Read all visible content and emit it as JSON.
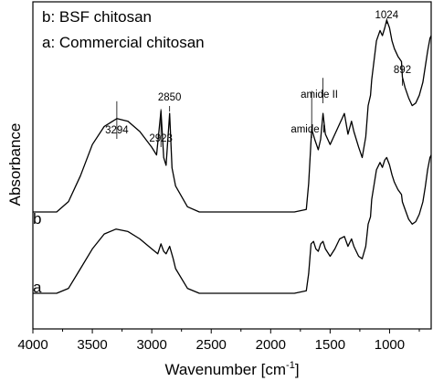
{
  "chart_data": {
    "type": "line",
    "xlabel": "Wavenumber",
    "xlabel_unit": "[cm",
    "xlabel_unit_exp": "-1",
    "xlabel_unit_close": "]",
    "ylabel": "Absorbance",
    "xlim": [
      4000,
      650
    ],
    "x_reversed": true,
    "x_ticks": [
      4000,
      3500,
      3000,
      2500,
      2000,
      1500,
      1000
    ],
    "y_ticks": [],
    "grid": false,
    "legend": {
      "placement": "top-left",
      "entries": [
        "b: BSF chitosan",
        "a: Commercial chitosan"
      ]
    },
    "annotations": [
      {
        "label": "3294",
        "x": 3294,
        "series": "b",
        "tip_y": 0.54
      },
      {
        "label": "2923",
        "x": 2923,
        "series": "b",
        "tip_y": 0.51
      },
      {
        "label": "2850",
        "x": 2850,
        "series": "b",
        "tip_y": 0.5
      },
      {
        "label": "amide I",
        "x": 1655,
        "series": "b",
        "tip_y": 0.58
      },
      {
        "label": "amide II",
        "x": 1560,
        "series": "b",
        "tip_y": 0.63
      },
      {
        "label": "1024",
        "x": 1024,
        "series": "b",
        "tip_y": 0.86
      },
      {
        "label": "892",
        "x": 892,
        "series": "b",
        "tip_y": 0.6
      }
    ],
    "series": [
      {
        "name": "b",
        "points": [
          [
            4000,
            0.12
          ],
          [
            3800,
            0.12
          ],
          [
            3700,
            0.16
          ],
          [
            3600,
            0.26
          ],
          [
            3500,
            0.38
          ],
          [
            3400,
            0.45
          ],
          [
            3294,
            0.48
          ],
          [
            3200,
            0.47
          ],
          [
            3100,
            0.43
          ],
          [
            3000,
            0.37
          ],
          [
            2960,
            0.34
          ],
          [
            2923,
            0.51
          ],
          [
            2900,
            0.33
          ],
          [
            2880,
            0.3
          ],
          [
            2850,
            0.5
          ],
          [
            2830,
            0.29
          ],
          [
            2800,
            0.22
          ],
          [
            2700,
            0.14
          ],
          [
            2600,
            0.12
          ],
          [
            2400,
            0.12
          ],
          [
            2200,
            0.12
          ],
          [
            2000,
            0.12
          ],
          [
            1800,
            0.12
          ],
          [
            1700,
            0.13
          ],
          [
            1680,
            0.23
          ],
          [
            1655,
            0.44
          ],
          [
            1630,
            0.4
          ],
          [
            1600,
            0.36
          ],
          [
            1580,
            0.4
          ],
          [
            1560,
            0.5
          ],
          [
            1540,
            0.42
          ],
          [
            1500,
            0.38
          ],
          [
            1460,
            0.42
          ],
          [
            1420,
            0.46
          ],
          [
            1380,
            0.5
          ],
          [
            1350,
            0.42
          ],
          [
            1320,
            0.47
          ],
          [
            1300,
            0.43
          ],
          [
            1260,
            0.37
          ],
          [
            1230,
            0.33
          ],
          [
            1200,
            0.41
          ],
          [
            1180,
            0.53
          ],
          [
            1160,
            0.57
          ],
          [
            1150,
            0.63
          ],
          [
            1110,
            0.78
          ],
          [
            1080,
            0.82
          ],
          [
            1060,
            0.8
          ],
          [
            1040,
            0.83
          ],
          [
            1024,
            0.86
          ],
          [
            1000,
            0.83
          ],
          [
            980,
            0.78
          ],
          [
            960,
            0.75
          ],
          [
            930,
            0.72
          ],
          [
            900,
            0.7
          ],
          [
            892,
            0.64
          ],
          [
            870,
            0.6
          ],
          [
            840,
            0.56
          ],
          [
            810,
            0.53
          ],
          [
            780,
            0.54
          ],
          [
            750,
            0.57
          ],
          [
            720,
            0.62
          ],
          [
            700,
            0.68
          ],
          [
            680,
            0.74
          ],
          [
            660,
            0.79
          ],
          [
            650,
            0.8
          ]
        ]
      },
      {
        "name": "a",
        "points": [
          [
            4000,
            0.12
          ],
          [
            3800,
            0.12
          ],
          [
            3700,
            0.14
          ],
          [
            3600,
            0.22
          ],
          [
            3500,
            0.3
          ],
          [
            3400,
            0.36
          ],
          [
            3300,
            0.38
          ],
          [
            3200,
            0.37
          ],
          [
            3100,
            0.34
          ],
          [
            3000,
            0.3
          ],
          [
            2950,
            0.28
          ],
          [
            2923,
            0.32
          ],
          [
            2900,
            0.29
          ],
          [
            2880,
            0.28
          ],
          [
            2850,
            0.31
          ],
          [
            2820,
            0.26
          ],
          [
            2800,
            0.22
          ],
          [
            2700,
            0.14
          ],
          [
            2600,
            0.12
          ],
          [
            2400,
            0.12
          ],
          [
            2200,
            0.12
          ],
          [
            2000,
            0.12
          ],
          [
            1800,
            0.12
          ],
          [
            1700,
            0.13
          ],
          [
            1680,
            0.2
          ],
          [
            1660,
            0.32
          ],
          [
            1640,
            0.33
          ],
          [
            1620,
            0.3
          ],
          [
            1600,
            0.29
          ],
          [
            1580,
            0.32
          ],
          [
            1560,
            0.33
          ],
          [
            1540,
            0.3
          ],
          [
            1500,
            0.27
          ],
          [
            1460,
            0.3
          ],
          [
            1420,
            0.34
          ],
          [
            1380,
            0.35
          ],
          [
            1350,
            0.31
          ],
          [
            1320,
            0.34
          ],
          [
            1300,
            0.31
          ],
          [
            1260,
            0.27
          ],
          [
            1230,
            0.26
          ],
          [
            1200,
            0.31
          ],
          [
            1180,
            0.4
          ],
          [
            1160,
            0.43
          ],
          [
            1150,
            0.5
          ],
          [
            1110,
            0.62
          ],
          [
            1080,
            0.65
          ],
          [
            1060,
            0.63
          ],
          [
            1040,
            0.66
          ],
          [
            1024,
            0.67
          ],
          [
            1000,
            0.64
          ],
          [
            980,
            0.6
          ],
          [
            960,
            0.57
          ],
          [
            930,
            0.54
          ],
          [
            900,
            0.52
          ],
          [
            892,
            0.49
          ],
          [
            870,
            0.46
          ],
          [
            840,
            0.42
          ],
          [
            810,
            0.4
          ],
          [
            780,
            0.41
          ],
          [
            750,
            0.44
          ],
          [
            720,
            0.49
          ],
          [
            700,
            0.55
          ],
          [
            680,
            0.62
          ],
          [
            660,
            0.67
          ],
          [
            650,
            0.68
          ]
        ]
      }
    ]
  }
}
